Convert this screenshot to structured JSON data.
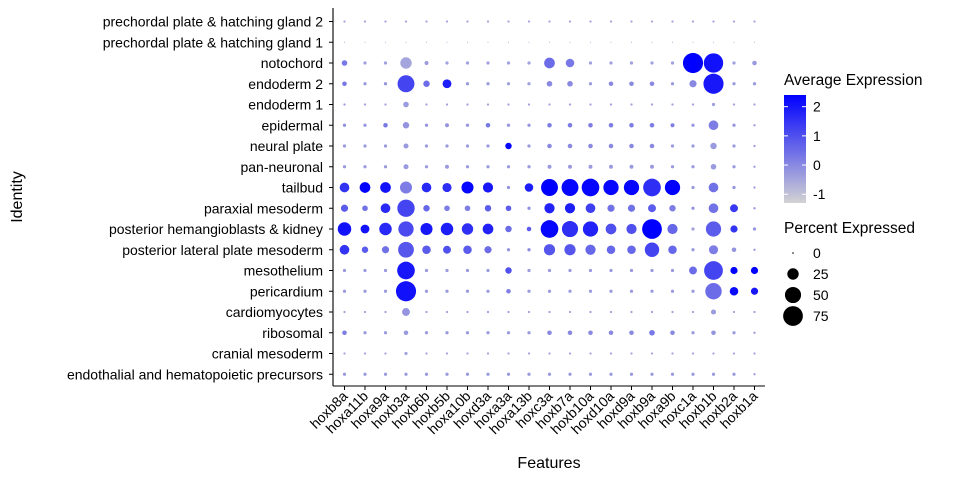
{
  "chart_data": {
    "type": "dotplot",
    "xlabel": "Features",
    "ylabel": "Identity",
    "features": [
      "hoxb8a",
      "hoxa11b",
      "hoxa9a",
      "hoxb3a",
      "hoxb6b",
      "hoxb5b",
      "hoxa10b",
      "hoxd3a",
      "hoxa3a",
      "hoxa13b",
      "hoxc3a",
      "hoxb7a",
      "hoxb10a",
      "hoxd10a",
      "hoxd9a",
      "hoxb9a",
      "hoxa9b",
      "hoxc1a",
      "hoxb1b",
      "hoxb2a",
      "hoxb1a"
    ],
    "identities": [
      "prechordal plate & hatching gland 2",
      "prechordal plate & hatching gland 1",
      "notochord",
      "endoderm 2",
      "endoderm 1",
      "epidermal",
      "neural plate",
      "pan-neuronal",
      "tailbud",
      "paraxial mesoderm",
      "posterior hemangioblasts & kidney",
      "posterior lateral plate mesoderm",
      "mesothelium",
      "pericardium",
      "cardiomyocytes",
      "ribosomal",
      "cranial mesoderm",
      "endothalial and hematopoietic precursors"
    ],
    "legend_color": {
      "title": "Average Expression",
      "ticks": [
        "2",
        "1",
        "0",
        "-1"
      ],
      "tick_values": [
        2,
        1,
        0,
        -1
      ],
      "range": [
        -1.3,
        2.4
      ],
      "low_color": "#d3d3d3",
      "high_color": "#0000ff"
    },
    "legend_size": {
      "title": "Percent Expressed",
      "labels": [
        "0",
        "25",
        "50",
        "75"
      ],
      "values": [
        0,
        25,
        50,
        75
      ]
    },
    "pct_expressed": [
      [
        1,
        1,
        1,
        1,
        1,
        1,
        1,
        1,
        1,
        1,
        1,
        1,
        1,
        1,
        1,
        1,
        1,
        1,
        1,
        1,
        1
      ],
      [
        0,
        0,
        0,
        0,
        0,
        0,
        0,
        0,
        0,
        0,
        0,
        0,
        0,
        0,
        0,
        0,
        0,
        0,
        0,
        0,
        0
      ],
      [
        6,
        2,
        2,
        25,
        3,
        2,
        2,
        2,
        2,
        2,
        22,
        14,
        2,
        2,
        2,
        2,
        2,
        78,
        72,
        2,
        4
      ],
      [
        4,
        2,
        2,
        55,
        8,
        15,
        2,
        2,
        2,
        2,
        6,
        6,
        2,
        4,
        4,
        4,
        2,
        10,
        78,
        2,
        2
      ],
      [
        1,
        1,
        1,
        6,
        1,
        1,
        1,
        1,
        1,
        1,
        1,
        1,
        1,
        1,
        1,
        1,
        1,
        1,
        2,
        1,
        1
      ],
      [
        2,
        2,
        4,
        8,
        2,
        3,
        2,
        4,
        2,
        2,
        4,
        4,
        4,
        4,
        4,
        4,
        3,
        2,
        18,
        2,
        1
      ],
      [
        2,
        2,
        2,
        5,
        2,
        2,
        2,
        2,
        8,
        2,
        4,
        4,
        4,
        4,
        4,
        4,
        2,
        2,
        8,
        2,
        1
      ],
      [
        2,
        2,
        2,
        5,
        2,
        3,
        2,
        2,
        2,
        2,
        3,
        3,
        3,
        3,
        3,
        3,
        2,
        2,
        6,
        2,
        1
      ],
      [
        18,
        22,
        22,
        28,
        18,
        16,
        28,
        20,
        2,
        14,
        55,
        55,
        60,
        45,
        45,
        60,
        45,
        2,
        18,
        2,
        1
      ],
      [
        10,
        6,
        18,
        58,
        8,
        6,
        6,
        8,
        6,
        2,
        20,
        20,
        18,
        10,
        10,
        12,
        8,
        2,
        18,
        12,
        1
      ],
      [
        35,
        15,
        30,
        45,
        28,
        30,
        25,
        22,
        8,
        4,
        60,
        50,
        45,
        22,
        20,
        75,
        20,
        2,
        45,
        10,
        2
      ],
      [
        18,
        8,
        10,
        48,
        14,
        12,
        14,
        10,
        2,
        2,
        24,
        24,
        20,
        14,
        14,
        40,
        14,
        2,
        16,
        4,
        1
      ],
      [
        2,
        2,
        2,
        60,
        2,
        2,
        2,
        2,
        8,
        2,
        2,
        2,
        2,
        2,
        2,
        2,
        2,
        12,
        68,
        10,
        10
      ],
      [
        2,
        2,
        2,
        78,
        2,
        2,
        2,
        2,
        4,
        2,
        2,
        2,
        2,
        2,
        2,
        2,
        2,
        2,
        52,
        14,
        10
      ],
      [
        1,
        1,
        1,
        12,
        1,
        1,
        1,
        1,
        1,
        1,
        1,
        1,
        1,
        1,
        1,
        1,
        1,
        1,
        5,
        1,
        1
      ],
      [
        4,
        2,
        2,
        4,
        2,
        2,
        2,
        2,
        2,
        2,
        4,
        4,
        4,
        4,
        4,
        6,
        4,
        2,
        4,
        2,
        1
      ],
      [
        1,
        1,
        1,
        2,
        1,
        1,
        1,
        1,
        1,
        1,
        1,
        1,
        1,
        1,
        1,
        1,
        1,
        1,
        1,
        1,
        1
      ],
      [
        2,
        2,
        2,
        2,
        2,
        2,
        2,
        2,
        2,
        2,
        2,
        2,
        2,
        2,
        2,
        2,
        2,
        2,
        2,
        2,
        1
      ]
    ],
    "avg_expression": [
      [
        -0.5,
        -0.5,
        -0.5,
        -0.5,
        -0.5,
        -0.5,
        -0.5,
        -0.5,
        -0.5,
        -0.5,
        -0.5,
        -0.5,
        -0.5,
        -0.5,
        -0.5,
        -0.5,
        -0.5,
        -0.5,
        -0.5,
        -0.5,
        -0.5
      ],
      [
        -0.5,
        -0.5,
        -0.5,
        -0.5,
        -0.5,
        -0.5,
        -0.5,
        -0.5,
        -0.5,
        -0.5,
        -0.5,
        -0.5,
        -0.5,
        -0.5,
        -0.5,
        -0.5,
        -0.5,
        -0.5,
        -0.5,
        -0.5,
        -0.5
      ],
      [
        0.3,
        -0.4,
        -0.4,
        -0.5,
        -0.3,
        -0.4,
        -0.4,
        -0.4,
        -0.4,
        -0.4,
        0.5,
        0.3,
        -0.4,
        -0.4,
        -0.4,
        -0.4,
        -0.4,
        2.4,
        2.1,
        -0.4,
        -0.3
      ],
      [
        0.3,
        -0.3,
        -0.2,
        1.2,
        0.5,
        1.9,
        -0.3,
        -0.3,
        -0.4,
        -0.4,
        0.0,
        0.0,
        -0.3,
        0.0,
        0.0,
        0.0,
        -0.3,
        0.0,
        2.0,
        -0.3,
        -0.3
      ],
      [
        -0.3,
        -0.4,
        -0.4,
        -0.3,
        -0.4,
        -0.4,
        -0.4,
        -0.4,
        -0.4,
        -0.4,
        -0.4,
        -0.4,
        -0.4,
        -0.4,
        -0.4,
        -0.4,
        -0.4,
        -0.4,
        -0.4,
        -0.4,
        -0.4
      ],
      [
        -0.1,
        -0.2,
        0.3,
        -0.2,
        -0.2,
        -0.2,
        -0.2,
        0.3,
        -0.2,
        -0.2,
        0.2,
        0.2,
        0.2,
        0.2,
        0.2,
        0.2,
        0.2,
        -0.2,
        0.2,
        -0.2,
        -0.3
      ],
      [
        -0.3,
        -0.3,
        -0.3,
        -0.3,
        -0.3,
        -0.3,
        -0.3,
        -0.3,
        2.3,
        -0.3,
        0.0,
        0.0,
        0.0,
        0.0,
        0.0,
        0.0,
        -0.3,
        -0.3,
        -0.3,
        -0.3,
        -0.3
      ],
      [
        -0.3,
        -0.3,
        -0.3,
        -0.3,
        -0.3,
        -0.3,
        -0.3,
        -0.3,
        -0.3,
        -0.3,
        -0.3,
        -0.3,
        -0.3,
        -0.3,
        -0.3,
        -0.3,
        -0.3,
        -0.3,
        -0.3,
        -0.3,
        -0.3
      ],
      [
        1.5,
        2.4,
        2.1,
        0.2,
        1.7,
        1.6,
        2.3,
        2.0,
        -0.2,
        1.9,
        2.4,
        2.3,
        2.3,
        2.3,
        2.3,
        1.6,
        2.4,
        -0.3,
        0.4,
        -0.2,
        -0.3
      ],
      [
        0.8,
        0.4,
        1.7,
        1.2,
        0.6,
        0.2,
        0.2,
        0.8,
        0.8,
        -0.1,
        1.8,
        1.9,
        1.3,
        0.4,
        0.4,
        0.8,
        0.2,
        -0.2,
        0.4,
        1.4,
        -0.2
      ],
      [
        2.1,
        2.1,
        1.7,
        1.1,
        2.0,
        1.9,
        1.6,
        1.8,
        0.5,
        0.8,
        2.3,
        1.6,
        1.8,
        1.0,
        1.0,
        2.4,
        0.6,
        -0.4,
        0.8,
        1.5,
        -0.2
      ],
      [
        1.5,
        0.8,
        0.4,
        0.9,
        0.8,
        1.0,
        0.8,
        0.5,
        -0.2,
        0.0,
        0.9,
        0.9,
        0.6,
        0.6,
        0.6,
        1.2,
        0.6,
        -0.3,
        0.2,
        -0.2,
        -0.2
      ],
      [
        -0.3,
        -0.3,
        -0.3,
        2.0,
        -0.3,
        -0.3,
        -0.3,
        -0.3,
        1.0,
        -0.3,
        -0.3,
        -0.3,
        -0.3,
        -0.3,
        -0.3,
        -0.3,
        -0.3,
        0.5,
        1.2,
        2.4,
        2.4
      ],
      [
        -0.3,
        -0.3,
        -0.3,
        2.1,
        -0.3,
        -0.3,
        -0.3,
        -0.3,
        0.2,
        -0.3,
        -0.3,
        -0.3,
        -0.3,
        -0.3,
        -0.3,
        -0.3,
        -0.3,
        -0.3,
        0.5,
        2.2,
        2.0
      ],
      [
        -0.4,
        -0.4,
        -0.4,
        -0.2,
        -0.4,
        -0.4,
        -0.4,
        -0.4,
        -0.4,
        -0.4,
        -0.4,
        -0.4,
        -0.4,
        -0.4,
        -0.4,
        -0.4,
        -0.4,
        -0.4,
        -0.3,
        -0.4,
        -0.4
      ],
      [
        0.2,
        -0.3,
        -0.3,
        -0.3,
        -0.3,
        -0.3,
        -0.3,
        -0.3,
        -0.3,
        -0.3,
        0.0,
        0.0,
        0.0,
        0.0,
        0.0,
        0.3,
        0.0,
        -0.3,
        -0.2,
        -0.3,
        -0.3
      ],
      [
        -0.5,
        -0.5,
        -0.5,
        -0.5,
        -0.5,
        -0.5,
        -0.5,
        -0.5,
        -0.5,
        -0.5,
        -0.5,
        -0.5,
        -0.5,
        -0.5,
        -0.5,
        -0.5,
        -0.5,
        -0.5,
        -0.5,
        -0.5,
        -0.5
      ],
      [
        -0.3,
        -0.3,
        -0.3,
        -0.3,
        -0.3,
        -0.3,
        -0.3,
        -0.3,
        -0.3,
        -0.3,
        -0.3,
        -0.3,
        -0.3,
        -0.3,
        -0.3,
        -0.3,
        -0.3,
        -0.3,
        -0.3,
        -0.3,
        -0.3
      ]
    ]
  }
}
